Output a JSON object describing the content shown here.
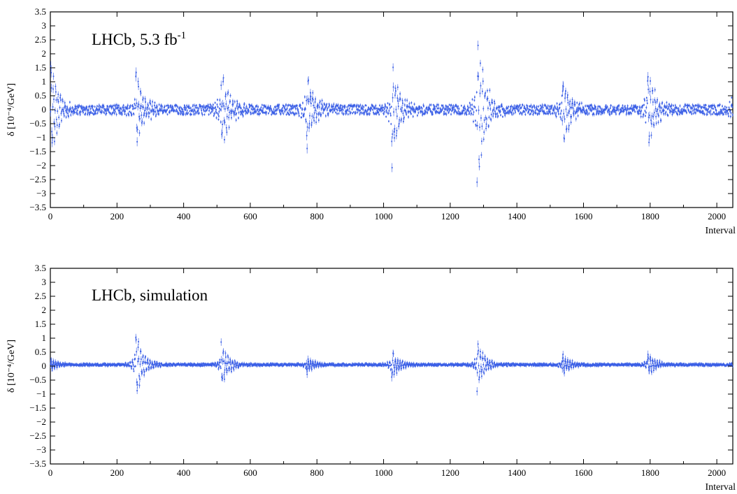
{
  "chart_data": [
    {
      "type": "scatter",
      "panel_label": "LHCb, 5.3 fb",
      "panel_label_sup": "-1",
      "ylabel": "δ [10⁻⁴/GeV]",
      "xlabel": "Interval",
      "xlim": [
        0,
        2048
      ],
      "ylim": [
        -3.5,
        3.5
      ],
      "xticks": [
        "0",
        "200",
        "400",
        "600",
        "800",
        "1000",
        "1200",
        "1400",
        "1600",
        "1800",
        "2000"
      ],
      "yticks": [
        "3.5",
        "3",
        "2.5",
        "2",
        "1.5",
        "1",
        "0.5",
        "0",
        "−0.5",
        "−1",
        "−1.5",
        "−2",
        "−2.5",
        "−3",
        "−3.5"
      ],
      "grid": false,
      "marker_color": "#3b5fe6",
      "description_of_pattern": {
        "block_size": 256,
        "block_starts": [
          0,
          256,
          512,
          768,
          1024,
          1280,
          1536,
          1792,
          2048
        ],
        "peak_excursion": [
          2.0,
          1.6,
          1.7,
          1.6,
          2.1,
          3.2,
          1.5,
          1.7,
          1.2
        ],
        "baseline_spread": 0.35
      }
    },
    {
      "type": "scatter",
      "panel_label": "LHCb, simulation",
      "ylabel": "δ [10⁻⁴/GeV]",
      "xlabel": "Interval",
      "xlim": [
        0,
        2048
      ],
      "ylim": [
        -3.5,
        3.5
      ],
      "xticks": [
        "0",
        "200",
        "400",
        "600",
        "800",
        "1000",
        "1200",
        "1400",
        "1600",
        "1800",
        "2000"
      ],
      "yticks": [
        "3.5",
        "3",
        "2.5",
        "2",
        "1.5",
        "1",
        "0.5",
        "0",
        "−0.5",
        "−1",
        "−1.5",
        "−2",
        "−2.5",
        "−3",
        "−3.5"
      ],
      "grid": false,
      "marker_color": "#3b5fe6",
      "description_of_pattern": {
        "block_size": 256,
        "block_starts": [
          0,
          256,
          512,
          768,
          1024,
          1280,
          1536,
          1792,
          2048
        ],
        "peak_excursion": [
          0.3,
          2.0,
          1.3,
          0.5,
          0.9,
          1.4,
          0.65,
          0.8,
          0.2
        ],
        "baseline_spread": 0.08
      }
    }
  ]
}
